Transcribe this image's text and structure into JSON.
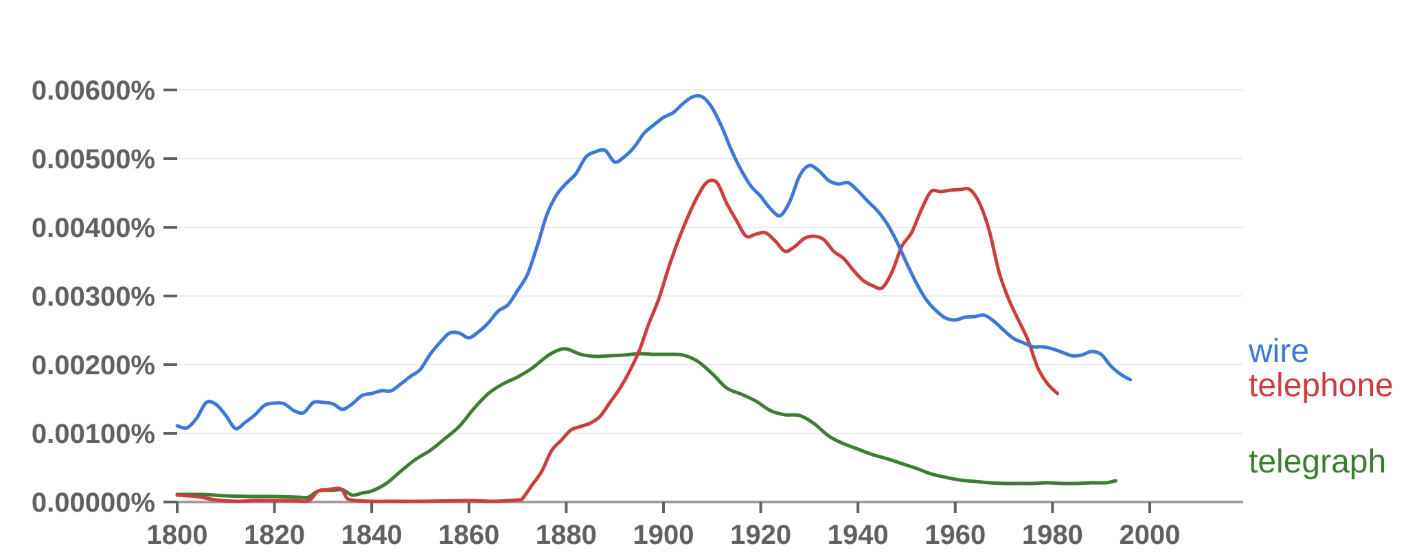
{
  "chart_data": {
    "type": "line",
    "title": "",
    "xlabel": "",
    "ylabel": "",
    "xlim": [
      1800,
      2019
    ],
    "ylim": [
      0,
      0.006
    ],
    "grid": true,
    "legend": "line-end labels",
    "x_ticks": [
      {
        "value": 1800,
        "label": "1800"
      },
      {
        "value": 1820,
        "label": "1820"
      },
      {
        "value": 1840,
        "label": "1840"
      },
      {
        "value": 1860,
        "label": "1860"
      },
      {
        "value": 1880,
        "label": "1880"
      },
      {
        "value": 1900,
        "label": "1900"
      },
      {
        "value": 1920,
        "label": "1920"
      },
      {
        "value": 1940,
        "label": "1940"
      },
      {
        "value": 1960,
        "label": "1960"
      },
      {
        "value": 1980,
        "label": "1980"
      },
      {
        "value": 2000,
        "label": "2000"
      }
    ],
    "y_ticks": [
      {
        "value": 0,
        "label": "0.00000%"
      },
      {
        "value": 0.001,
        "label": "0.00100%"
      },
      {
        "value": 0.002,
        "label": "0.00200%"
      },
      {
        "value": 0.003,
        "label": "0.00300%"
      },
      {
        "value": 0.004,
        "label": "0.00400%"
      },
      {
        "value": 0.005,
        "label": "0.00500%"
      },
      {
        "value": 0.006,
        "label": "0.00600%"
      }
    ],
    "series": [
      {
        "name": "wire",
        "color": "#3b78d8",
        "points": [
          [
            1800,
            0.00111
          ],
          [
            1802,
            0.00108
          ],
          [
            1804,
            0.00122
          ],
          [
            1806,
            0.00145
          ],
          [
            1808,
            0.00142
          ],
          [
            1810,
            0.00126
          ],
          [
            1812,
            0.00107
          ],
          [
            1814,
            0.00116
          ],
          [
            1816,
            0.00127
          ],
          [
            1818,
            0.00141
          ],
          [
            1820,
            0.00144
          ],
          [
            1822,
            0.00143
          ],
          [
            1824,
            0.00133
          ],
          [
            1826,
            0.0013
          ],
          [
            1828,
            0.00145
          ],
          [
            1830,
            0.00145
          ],
          [
            1832,
            0.00143
          ],
          [
            1834,
            0.00135
          ],
          [
            1836,
            0.00143
          ],
          [
            1838,
            0.00155
          ],
          [
            1840,
            0.00158
          ],
          [
            1842,
            0.00162
          ],
          [
            1844,
            0.00162
          ],
          [
            1846,
            0.00172
          ],
          [
            1848,
            0.00183
          ],
          [
            1850,
            0.00193
          ],
          [
            1852,
            0.00215
          ],
          [
            1854,
            0.00232
          ],
          [
            1856,
            0.00246
          ],
          [
            1858,
            0.00246
          ],
          [
            1860,
            0.00239
          ],
          [
            1862,
            0.00248
          ],
          [
            1864,
            0.00261
          ],
          [
            1866,
            0.00278
          ],
          [
            1868,
            0.00287
          ],
          [
            1870,
            0.00308
          ],
          [
            1872,
            0.00331
          ],
          [
            1874,
            0.00372
          ],
          [
            1876,
            0.00418
          ],
          [
            1878,
            0.00447
          ],
          [
            1880,
            0.00464
          ],
          [
            1882,
            0.00478
          ],
          [
            1884,
            0.00502
          ],
          [
            1886,
            0.0051
          ],
          [
            1888,
            0.00512
          ],
          [
            1890,
            0.00495
          ],
          [
            1892,
            0.00503
          ],
          [
            1894,
            0.00517
          ],
          [
            1896,
            0.00537
          ],
          [
            1898,
            0.00549
          ],
          [
            1900,
            0.0056
          ],
          [
            1902,
            0.00567
          ],
          [
            1904,
            0.0058
          ],
          [
            1906,
            0.0059
          ],
          [
            1908,
            0.0059
          ],
          [
            1910,
            0.00574
          ],
          [
            1912,
            0.00546
          ],
          [
            1914,
            0.00512
          ],
          [
            1916,
            0.00483
          ],
          [
            1918,
            0.0046
          ],
          [
            1920,
            0.00445
          ],
          [
            1922,
            0.00427
          ],
          [
            1924,
            0.00417
          ],
          [
            1926,
            0.00438
          ],
          [
            1928,
            0.00475
          ],
          [
            1930,
            0.0049
          ],
          [
            1932,
            0.00482
          ],
          [
            1934,
            0.00468
          ],
          [
            1936,
            0.00463
          ],
          [
            1938,
            0.00465
          ],
          [
            1940,
            0.00453
          ],
          [
            1942,
            0.00438
          ],
          [
            1944,
            0.00424
          ],
          [
            1946,
            0.00405
          ],
          [
            1948,
            0.00379
          ],
          [
            1950,
            0.00348
          ],
          [
            1952,
            0.00319
          ],
          [
            1954,
            0.00295
          ],
          [
            1956,
            0.00279
          ],
          [
            1958,
            0.00268
          ],
          [
            1960,
            0.00265
          ],
          [
            1962,
            0.00269
          ],
          [
            1964,
            0.0027
          ],
          [
            1966,
            0.00272
          ],
          [
            1968,
            0.00263
          ],
          [
            1970,
            0.0025
          ],
          [
            1972,
            0.00238
          ],
          [
            1974,
            0.00232
          ],
          [
            1976,
            0.00226
          ],
          [
            1978,
            0.00226
          ],
          [
            1980,
            0.00223
          ],
          [
            1982,
            0.00218
          ],
          [
            1984,
            0.00213
          ],
          [
            1986,
            0.00214
          ],
          [
            1988,
            0.00219
          ],
          [
            1990,
            0.00215
          ],
          [
            1992,
            0.00198
          ],
          [
            1994,
            0.00186
          ],
          [
            1996,
            0.00178
          ]
        ]
      },
      {
        "name": "telephone",
        "color": "#cc3d3d",
        "points": [
          [
            1800,
            0.0001
          ],
          [
            1804,
            8e-05
          ],
          [
            1808,
            3e-05
          ],
          [
            1812,
            1e-05
          ],
          [
            1816,
            2e-05
          ],
          [
            1820,
            2e-05
          ],
          [
            1824,
            2e-05
          ],
          [
            1827,
            2e-05
          ],
          [
            1829,
            0.00016
          ],
          [
            1831,
            0.00018
          ],
          [
            1833,
            0.0002
          ],
          [
            1834,
            0.00017
          ],
          [
            1835,
            5e-05
          ],
          [
            1837,
            2e-05
          ],
          [
            1840,
            1e-05
          ],
          [
            1845,
            1e-05
          ],
          [
            1850,
            1e-05
          ],
          [
            1860,
            2e-05
          ],
          [
            1865,
            1e-05
          ],
          [
            1870,
            3e-05
          ],
          [
            1871,
            5e-05
          ],
          [
            1873,
            0.00025
          ],
          [
            1875,
            0.00045
          ],
          [
            1877,
            0.00075
          ],
          [
            1879,
            0.0009
          ],
          [
            1881,
            0.00105
          ],
          [
            1883,
            0.0011
          ],
          [
            1885,
            0.00115
          ],
          [
            1887,
            0.00125
          ],
          [
            1889,
            0.00145
          ],
          [
            1891,
            0.00165
          ],
          [
            1893,
            0.0019
          ],
          [
            1895,
            0.0022
          ],
          [
            1897,
            0.0026
          ],
          [
            1899,
            0.00295
          ],
          [
            1901,
            0.0034
          ],
          [
            1903,
            0.0038
          ],
          [
            1905,
            0.00415
          ],
          [
            1907,
            0.00445
          ],
          [
            1909,
            0.00466
          ],
          [
            1911,
            0.00465
          ],
          [
            1913,
            0.00435
          ],
          [
            1915,
            0.0041
          ],
          [
            1917,
            0.00387
          ],
          [
            1919,
            0.0039
          ],
          [
            1921,
            0.00392
          ],
          [
            1923,
            0.0038
          ],
          [
            1925,
            0.00365
          ],
          [
            1927,
            0.00372
          ],
          [
            1929,
            0.00384
          ],
          [
            1931,
            0.00387
          ],
          [
            1933,
            0.00382
          ],
          [
            1935,
            0.00365
          ],
          [
            1937,
            0.00355
          ],
          [
            1939,
            0.00338
          ],
          [
            1941,
            0.00323
          ],
          [
            1943,
            0.00315
          ],
          [
            1945,
            0.00312
          ],
          [
            1947,
            0.00335
          ],
          [
            1949,
            0.00372
          ],
          [
            1951,
            0.00392
          ],
          [
            1953,
            0.00425
          ],
          [
            1955,
            0.00452
          ],
          [
            1957,
            0.00452
          ],
          [
            1959,
            0.00454
          ],
          [
            1961,
            0.00455
          ],
          [
            1963,
            0.00455
          ],
          [
            1965,
            0.00435
          ],
          [
            1967,
            0.00395
          ],
          [
            1969,
            0.00335
          ],
          [
            1971,
            0.00295
          ],
          [
            1973,
            0.00265
          ],
          [
            1975,
            0.00235
          ],
          [
            1977,
            0.00195
          ],
          [
            1979,
            0.00172
          ],
          [
            1981,
            0.00158
          ]
        ]
      },
      {
        "name": "telegraph",
        "color": "#3d7d32",
        "points": [
          [
            1800,
            0.00011
          ],
          [
            1805,
            0.00011
          ],
          [
            1810,
            9e-05
          ],
          [
            1815,
            8e-05
          ],
          [
            1820,
            8e-05
          ],
          [
            1825,
            7e-05
          ],
          [
            1827,
            7e-05
          ],
          [
            1829,
            0.00016
          ],
          [
            1832,
            0.00017
          ],
          [
            1834,
            0.00018
          ],
          [
            1836,
            0.0001
          ],
          [
            1838,
            0.00013
          ],
          [
            1840,
            0.00016
          ],
          [
            1843,
            0.00027
          ],
          [
            1846,
            0.00045
          ],
          [
            1849,
            0.00062
          ],
          [
            1852,
            0.00075
          ],
          [
            1855,
            0.00092
          ],
          [
            1858,
            0.0011
          ],
          [
            1861,
            0.00136
          ],
          [
            1864,
            0.00158
          ],
          [
            1867,
            0.00172
          ],
          [
            1870,
            0.00182
          ],
          [
            1873,
            0.00195
          ],
          [
            1876,
            0.00212
          ],
          [
            1878,
            0.0022
          ],
          [
            1880,
            0.00223
          ],
          [
            1883,
            0.00215
          ],
          [
            1886,
            0.00212
          ],
          [
            1889,
            0.00213
          ],
          [
            1892,
            0.00214
          ],
          [
            1895,
            0.00216
          ],
          [
            1898,
            0.00215
          ],
          [
            1901,
            0.00215
          ],
          [
            1904,
            0.00214
          ],
          [
            1907,
            0.00205
          ],
          [
            1910,
            0.00187
          ],
          [
            1913,
            0.00166
          ],
          [
            1916,
            0.00157
          ],
          [
            1919,
            0.00147
          ],
          [
            1922,
            0.00133
          ],
          [
            1925,
            0.00127
          ],
          [
            1928,
            0.00126
          ],
          [
            1931,
            0.00114
          ],
          [
            1934,
            0.00096
          ],
          [
            1937,
            0.00085
          ],
          [
            1940,
            0.00077
          ],
          [
            1943,
            0.00069
          ],
          [
            1946,
            0.00063
          ],
          [
            1949,
            0.00056
          ],
          [
            1952,
            0.00049
          ],
          [
            1955,
            0.00041
          ],
          [
            1958,
            0.00036
          ],
          [
            1961,
            0.00032
          ],
          [
            1964,
            0.0003
          ],
          [
            1967,
            0.00028
          ],
          [
            1970,
            0.00027
          ],
          [
            1973,
            0.00027
          ],
          [
            1976,
            0.00027
          ],
          [
            1979,
            0.00028
          ],
          [
            1982,
            0.00027
          ],
          [
            1985,
            0.00027
          ],
          [
            1988,
            0.00028
          ],
          [
            1991,
            0.00028
          ],
          [
            1993,
            0.00031
          ]
        ]
      }
    ]
  }
}
